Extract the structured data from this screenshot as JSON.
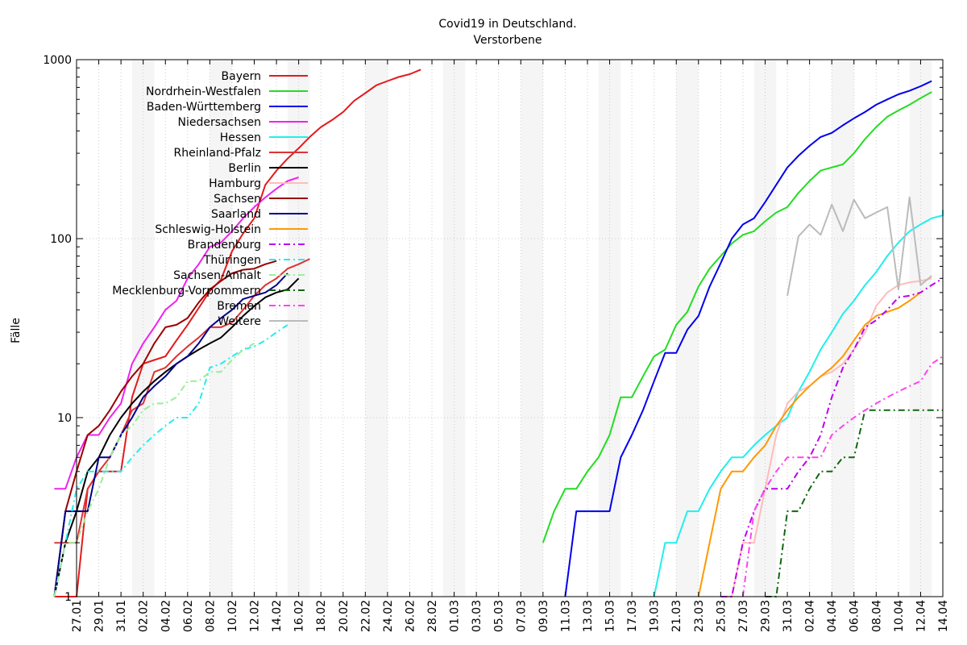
{
  "chart_data": {
    "type": "line",
    "title": "Covid19 in Deutschland.",
    "subtitle": "Verstorbene",
    "xlabel": "",
    "ylabel": "Fälle",
    "y_scale": "log",
    "ylim": [
      1,
      1000
    ],
    "y_ticks": [
      "1",
      "10",
      "100",
      "1000"
    ],
    "x_ticks": [
      "27.01",
      "29.01",
      "31.01",
      "02.02",
      "04.02",
      "06.02",
      "08.02",
      "10.02",
      "12.02",
      "14.02",
      "16.02",
      "18.02",
      "20.02",
      "22.02",
      "24.02",
      "26.02",
      "28.02",
      "01.03",
      "03.03",
      "05.03",
      "07.03",
      "09.03",
      "11.03",
      "13.03",
      "15.03",
      "17.03",
      "19.03",
      "21.03",
      "23.03",
      "25.03",
      "27.03",
      "29.03",
      "31.03",
      "02.04",
      "04.04",
      "06.04",
      "08.04",
      "10.04",
      "12.04",
      "14.04"
    ],
    "grid": true,
    "weekend_shading": true,
    "legend_position": "top-left",
    "series": [
      {
        "name": "Bayern",
        "color": "#e31a1c",
        "dash": "solid",
        "start": "12.03",
        "values": [
          1,
          1,
          1,
          4,
          5,
          5,
          5,
          13,
          20,
          21,
          22,
          27,
          33,
          41,
          51,
          59,
          85,
          107,
          130,
          200,
          240,
          280,
          320,
          370,
          420,
          460,
          510,
          590,
          650,
          720,
          760,
          800,
          830,
          880
        ]
      },
      {
        "name": "Nordrhein-Westfalen",
        "color": "#22dd22",
        "dash": "solid",
        "start": "09.03",
        "values": [
          2,
          3,
          4,
          4,
          5,
          6,
          8,
          13,
          13,
          17,
          22,
          24,
          33,
          39,
          54,
          68,
          80,
          94,
          105,
          110,
          125,
          140,
          150,
          180,
          210,
          240,
          250,
          260,
          300,
          360,
          420,
          480,
          520,
          560,
          610,
          660
        ]
      },
      {
        "name": "Baden-Württemberg",
        "color": "#0000ee",
        "dash": "solid",
        "start": "11.03",
        "values": [
          1,
          3,
          3,
          3,
          3,
          6,
          8,
          11,
          16,
          23,
          23,
          31,
          37,
          54,
          73,
          100,
          120,
          130,
          160,
          200,
          250,
          290,
          330,
          370,
          390,
          430,
          470,
          510,
          560,
          600,
          640,
          670,
          710,
          760
        ]
      },
      {
        "name": "Niedersachsen",
        "color": "#ee22ee",
        "dash": "solid",
        "start": "20.03",
        "values": [
          4,
          4,
          6,
          8,
          8,
          10,
          12,
          20,
          26,
          32,
          40,
          45,
          60,
          72,
          90,
          95,
          110,
          130,
          150,
          170,
          190,
          210,
          220
        ]
      },
      {
        "name": "Hessen",
        "color": "#22eeee",
        "dash": "solid",
        "start": "19.03",
        "values": [
          1,
          2,
          2,
          3,
          3,
          4,
          5,
          6,
          6,
          7,
          8,
          9,
          10,
          14,
          18,
          24,
          30,
          38,
          45,
          55,
          65,
          80,
          95,
          110,
          120,
          130,
          135,
          145
        ]
      },
      {
        "name": "Rheinland-Pfalz",
        "color": "#dd3333",
        "dash": "solid",
        "start": "20.03",
        "values": [
          2,
          2,
          2,
          4,
          5,
          6,
          8,
          11,
          12,
          18,
          19,
          22,
          25,
          28,
          32,
          32,
          34,
          40,
          48,
          55,
          60,
          68,
          72,
          77
        ]
      },
      {
        "name": "Berlin",
        "color": "#000000",
        "dash": "solid",
        "start": "22.03",
        "values": [
          1,
          2,
          3,
          5,
          6,
          8,
          10,
          12,
          14,
          16,
          18,
          20,
          22,
          24,
          26,
          28,
          32,
          37,
          42,
          47,
          50,
          52,
          60
        ]
      },
      {
        "name": "Hamburg",
        "color": "#ffbbbb",
        "dash": "solid",
        "start": "25.03",
        "values": [
          1,
          1,
          2,
          2,
          4,
          8,
          12,
          14,
          15,
          17,
          18,
          20,
          24,
          30,
          42,
          50,
          55,
          57,
          58,
          60
        ]
      },
      {
        "name": "Sachsen",
        "color": "#990000",
        "dash": "solid",
        "start": "22.03",
        "values": [
          1,
          3,
          5,
          8,
          9,
          11,
          14,
          17,
          20,
          26,
          32,
          33,
          36,
          44,
          52,
          58,
          64,
          67,
          68,
          72,
          75
        ]
      },
      {
        "name": "Saarland",
        "color": "#000088",
        "dash": "solid",
        "start": "22.03",
        "values": [
          1,
          3,
          3,
          3,
          6,
          6,
          8,
          10,
          13,
          15,
          17,
          20,
          22,
          26,
          32,
          36,
          40,
          46,
          48,
          50,
          55,
          64
        ]
      },
      {
        "name": "Schleswig-Holstein",
        "color": "#ff9900",
        "dash": "solid",
        "start": "23.03",
        "values": [
          1,
          2,
          4,
          5,
          5,
          6,
          7,
          9,
          11,
          13,
          15,
          17,
          19,
          22,
          27,
          33,
          37,
          39,
          41,
          45,
          50
        ]
      },
      {
        "name": "Brandenburg",
        "color": "#bb00ee",
        "dash": "dashdot",
        "start": "25.03",
        "values": [
          1,
          1,
          2,
          3,
          4,
          4,
          4,
          5,
          6,
          8,
          13,
          19,
          24,
          32,
          35,
          40,
          47,
          48,
          50,
          55,
          60
        ]
      },
      {
        "name": "Thüringen",
        "color": "#22eeee",
        "dash": "dashdot",
        "start": "24.03",
        "values": [
          1,
          2,
          4,
          5,
          5,
          5,
          5,
          6,
          7,
          8,
          9,
          10,
          10,
          12,
          19,
          20,
          22,
          24,
          25,
          27,
          30,
          33
        ]
      },
      {
        "name": "Sachsen-Anhalt",
        "color": "#99ee99",
        "dash": "dashdot",
        "start": "26.03",
        "values": [
          1,
          2,
          2,
          3,
          4,
          6,
          8,
          9,
          11,
          12,
          12,
          13,
          16,
          16,
          18,
          18,
          21,
          24,
          26
        ]
      },
      {
        "name": "Mecklenburg-Vorpommern",
        "color": "#116611",
        "dash": "dashdot",
        "start": "29.03",
        "values": [
          1,
          1,
          3,
          3,
          4,
          5,
          5,
          6,
          6,
          11,
          11,
          11,
          11,
          11,
          11,
          11,
          11
        ]
      },
      {
        "name": "Bremen",
        "color": "#ff44ee",
        "dash": "dashdot",
        "start": "27.03",
        "values": [
          1,
          3,
          4,
          5,
          6,
          6,
          6,
          6,
          8,
          9,
          10,
          11,
          12,
          13,
          14,
          15,
          16,
          20,
          22
        ]
      },
      {
        "name": "Weitere",
        "color": "#bbbbbb",
        "dash": "solid",
        "start": "31.03",
        "values": [
          48,
          103,
          120,
          105,
          155,
          110,
          165,
          130,
          140,
          150,
          52,
          170,
          55,
          62
        ]
      }
    ]
  }
}
